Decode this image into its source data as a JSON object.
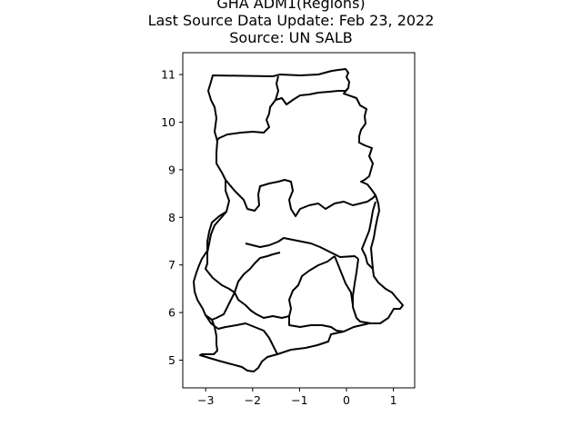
{
  "title_lines": [
    "GHA ADM1(Regions)",
    "Last Source Data Update: Feb 23, 2022",
    "Source: UN SALB"
  ],
  "chart_data": {
    "type": "map",
    "title": "GHA ADM1(Regions)\nLast Source Data Update: Feb 23, 2022\nSource: UN SALB",
    "xlim": [
      -3.4,
      1.4
    ],
    "ylim": [
      4.4,
      11.5
    ],
    "x_ticks": [
      -3,
      -2,
      -1,
      0,
      1
    ],
    "x_tick_labels": [
      "−3",
      "−2",
      "−1",
      "0",
      "1"
    ],
    "y_ticks": [
      5,
      6,
      7,
      8,
      9,
      10,
      11
    ],
    "y_tick_labels": [
      "5",
      "6",
      "7",
      "8",
      "9",
      "10",
      "11"
    ],
    "grid": false,
    "legend": "none",
    "stroke_color": "#000000"
  }
}
